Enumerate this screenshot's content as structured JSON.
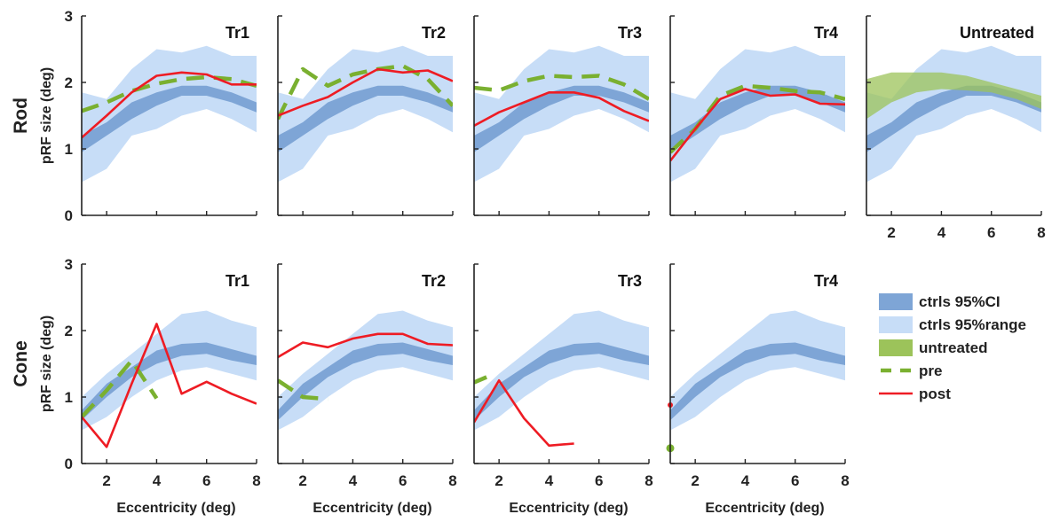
{
  "colors": {
    "ci": "#7ea5d6",
    "range": "#c7ddf7",
    "untreated": "#9cc35a",
    "pre": "#7ab030",
    "post": "#ee1c24",
    "axis": "#222222"
  },
  "chart_data": {
    "type": "line",
    "xlabel": "Eccentricity (deg)",
    "ylabel": "pRF size (deg)",
    "xlim": [
      1,
      8
    ],
    "ylim": [
      0,
      3
    ],
    "x_ticks": [
      2,
      4,
      6,
      8
    ],
    "y_ticks": [
      0,
      1,
      2,
      3
    ],
    "grid": false,
    "row_titles": [
      "Rod",
      "Cone"
    ],
    "legend": {
      "placement": "right",
      "entries": [
        {
          "key": "ci",
          "label": "ctrls 95%CI"
        },
        {
          "key": "range",
          "label": "ctrls 95%range"
        },
        {
          "key": "untreated",
          "label": "untreated"
        },
        {
          "key": "pre",
          "label": "pre"
        },
        {
          "key": "post",
          "label": "post"
        }
      ]
    },
    "controls": {
      "rod": {
        "x": [
          1,
          2,
          3,
          4,
          5,
          6,
          7,
          8
        ],
        "ci_low": [
          0.95,
          1.2,
          1.45,
          1.65,
          1.8,
          1.8,
          1.7,
          1.55
        ],
        "ci_high": [
          1.2,
          1.4,
          1.7,
          1.85,
          1.95,
          1.95,
          1.85,
          1.7
        ],
        "range_low": [
          0.5,
          0.7,
          1.2,
          1.3,
          1.5,
          1.6,
          1.45,
          1.25
        ],
        "range_high": [
          1.85,
          1.75,
          2.2,
          2.5,
          2.45,
          2.55,
          2.4,
          2.4
        ]
      },
      "cone": {
        "x": [
          1,
          2,
          3,
          4,
          5,
          6,
          7,
          8
        ],
        "ci_low": [
          0.65,
          1.0,
          1.3,
          1.5,
          1.62,
          1.65,
          1.55,
          1.48
        ],
        "ci_high": [
          0.8,
          1.2,
          1.45,
          1.7,
          1.8,
          1.82,
          1.72,
          1.62
        ],
        "range_low": [
          0.5,
          0.7,
          1.0,
          1.25,
          1.4,
          1.45,
          1.35,
          1.25
        ],
        "range_high": [
          1.0,
          1.35,
          1.65,
          1.95,
          2.25,
          2.3,
          2.15,
          2.05
        ]
      }
    },
    "panels": [
      {
        "row": "Rod",
        "title": "Tr1",
        "pre": {
          "x": [
            1,
            2,
            3,
            4,
            5,
            6,
            7,
            8
          ],
          "y": [
            1.57,
            1.7,
            1.87,
            1.98,
            2.05,
            2.08,
            2.05,
            1.95
          ]
        },
        "post": {
          "x": [
            1,
            2,
            3,
            4,
            5,
            6,
            7,
            8
          ],
          "y": [
            1.17,
            1.5,
            1.85,
            2.1,
            2.15,
            2.12,
            1.97,
            1.97
          ]
        }
      },
      {
        "row": "Rod",
        "title": "Tr2",
        "pre": {
          "x": [
            1,
            2,
            3,
            4,
            5,
            6,
            7,
            8
          ],
          "y": [
            1.45,
            2.2,
            1.95,
            2.12,
            2.2,
            2.25,
            2.05,
            1.65
          ]
        },
        "post": {
          "x": [
            1,
            2,
            3,
            4,
            5,
            6,
            7,
            8
          ],
          "y": [
            1.5,
            1.65,
            1.78,
            2.0,
            2.2,
            2.15,
            2.18,
            2.02
          ]
        }
      },
      {
        "row": "Rod",
        "title": "Tr3",
        "pre": {
          "x": [
            1,
            2,
            3,
            4,
            5,
            6,
            7,
            8
          ],
          "y": [
            1.92,
            1.88,
            2.02,
            2.1,
            2.08,
            2.1,
            1.97,
            1.75
          ]
        },
        "post": {
          "x": [
            1,
            2,
            3,
            4,
            5,
            6,
            7,
            8
          ],
          "y": [
            1.35,
            1.55,
            1.7,
            1.85,
            1.85,
            1.77,
            1.57,
            1.42
          ]
        }
      },
      {
        "row": "Rod",
        "title": "Tr4",
        "pre": {
          "x": [
            1,
            2,
            3,
            4,
            5,
            6,
            7,
            8
          ],
          "y": [
            0.95,
            1.3,
            1.8,
            1.95,
            1.92,
            1.87,
            1.85,
            1.75
          ]
        },
        "post": {
          "x": [
            1,
            2,
            3,
            4,
            5,
            6,
            7,
            8
          ],
          "y": [
            0.82,
            1.3,
            1.75,
            1.9,
            1.8,
            1.82,
            1.68,
            1.67
          ]
        }
      },
      {
        "row": "Rod",
        "title": "Untreated",
        "untreated_low": [
          1.45,
          1.7,
          1.85,
          1.9,
          1.88,
          1.85,
          1.75,
          1.6
        ],
        "untreated_high": [
          2.05,
          2.15,
          2.15,
          2.15,
          2.1,
          2.0,
          1.9,
          1.8
        ]
      },
      {
        "row": "Cone",
        "title": "Tr1",
        "pre": {
          "x": [
            1,
            2,
            3,
            4
          ],
          "y": [
            0.7,
            1.1,
            1.55,
            0.98
          ]
        },
        "post": {
          "x": [
            1,
            2,
            3,
            4,
            5,
            6,
            7,
            8
          ],
          "y": [
            0.7,
            0.25,
            1.2,
            2.1,
            1.05,
            1.23,
            1.05,
            0.9
          ]
        }
      },
      {
        "row": "Cone",
        "title": "Tr2",
        "pre": {
          "x": [
            1,
            2,
            3
          ],
          "y": [
            1.25,
            1.0,
            0.97
          ]
        },
        "post": {
          "x": [
            1,
            2,
            3,
            4,
            5,
            6,
            7,
            8
          ],
          "y": [
            1.6,
            1.82,
            1.75,
            1.88,
            1.95,
            1.95,
            1.8,
            1.78
          ]
        }
      },
      {
        "row": "Cone",
        "title": "Tr3",
        "pre": {
          "x": [
            1,
            1.5
          ],
          "y": [
            1.22,
            1.3
          ]
        },
        "post": {
          "x": [
            1,
            2,
            3,
            4,
            5
          ],
          "y": [
            0.62,
            1.25,
            0.68,
            0.27,
            0.3
          ]
        }
      },
      {
        "row": "Cone",
        "title": "Tr4",
        "pre": {
          "x": [
            1
          ],
          "y": [
            0.23
          ]
        },
        "post": {
          "x": [
            1
          ],
          "y": [
            0.88
          ]
        }
      }
    ]
  }
}
